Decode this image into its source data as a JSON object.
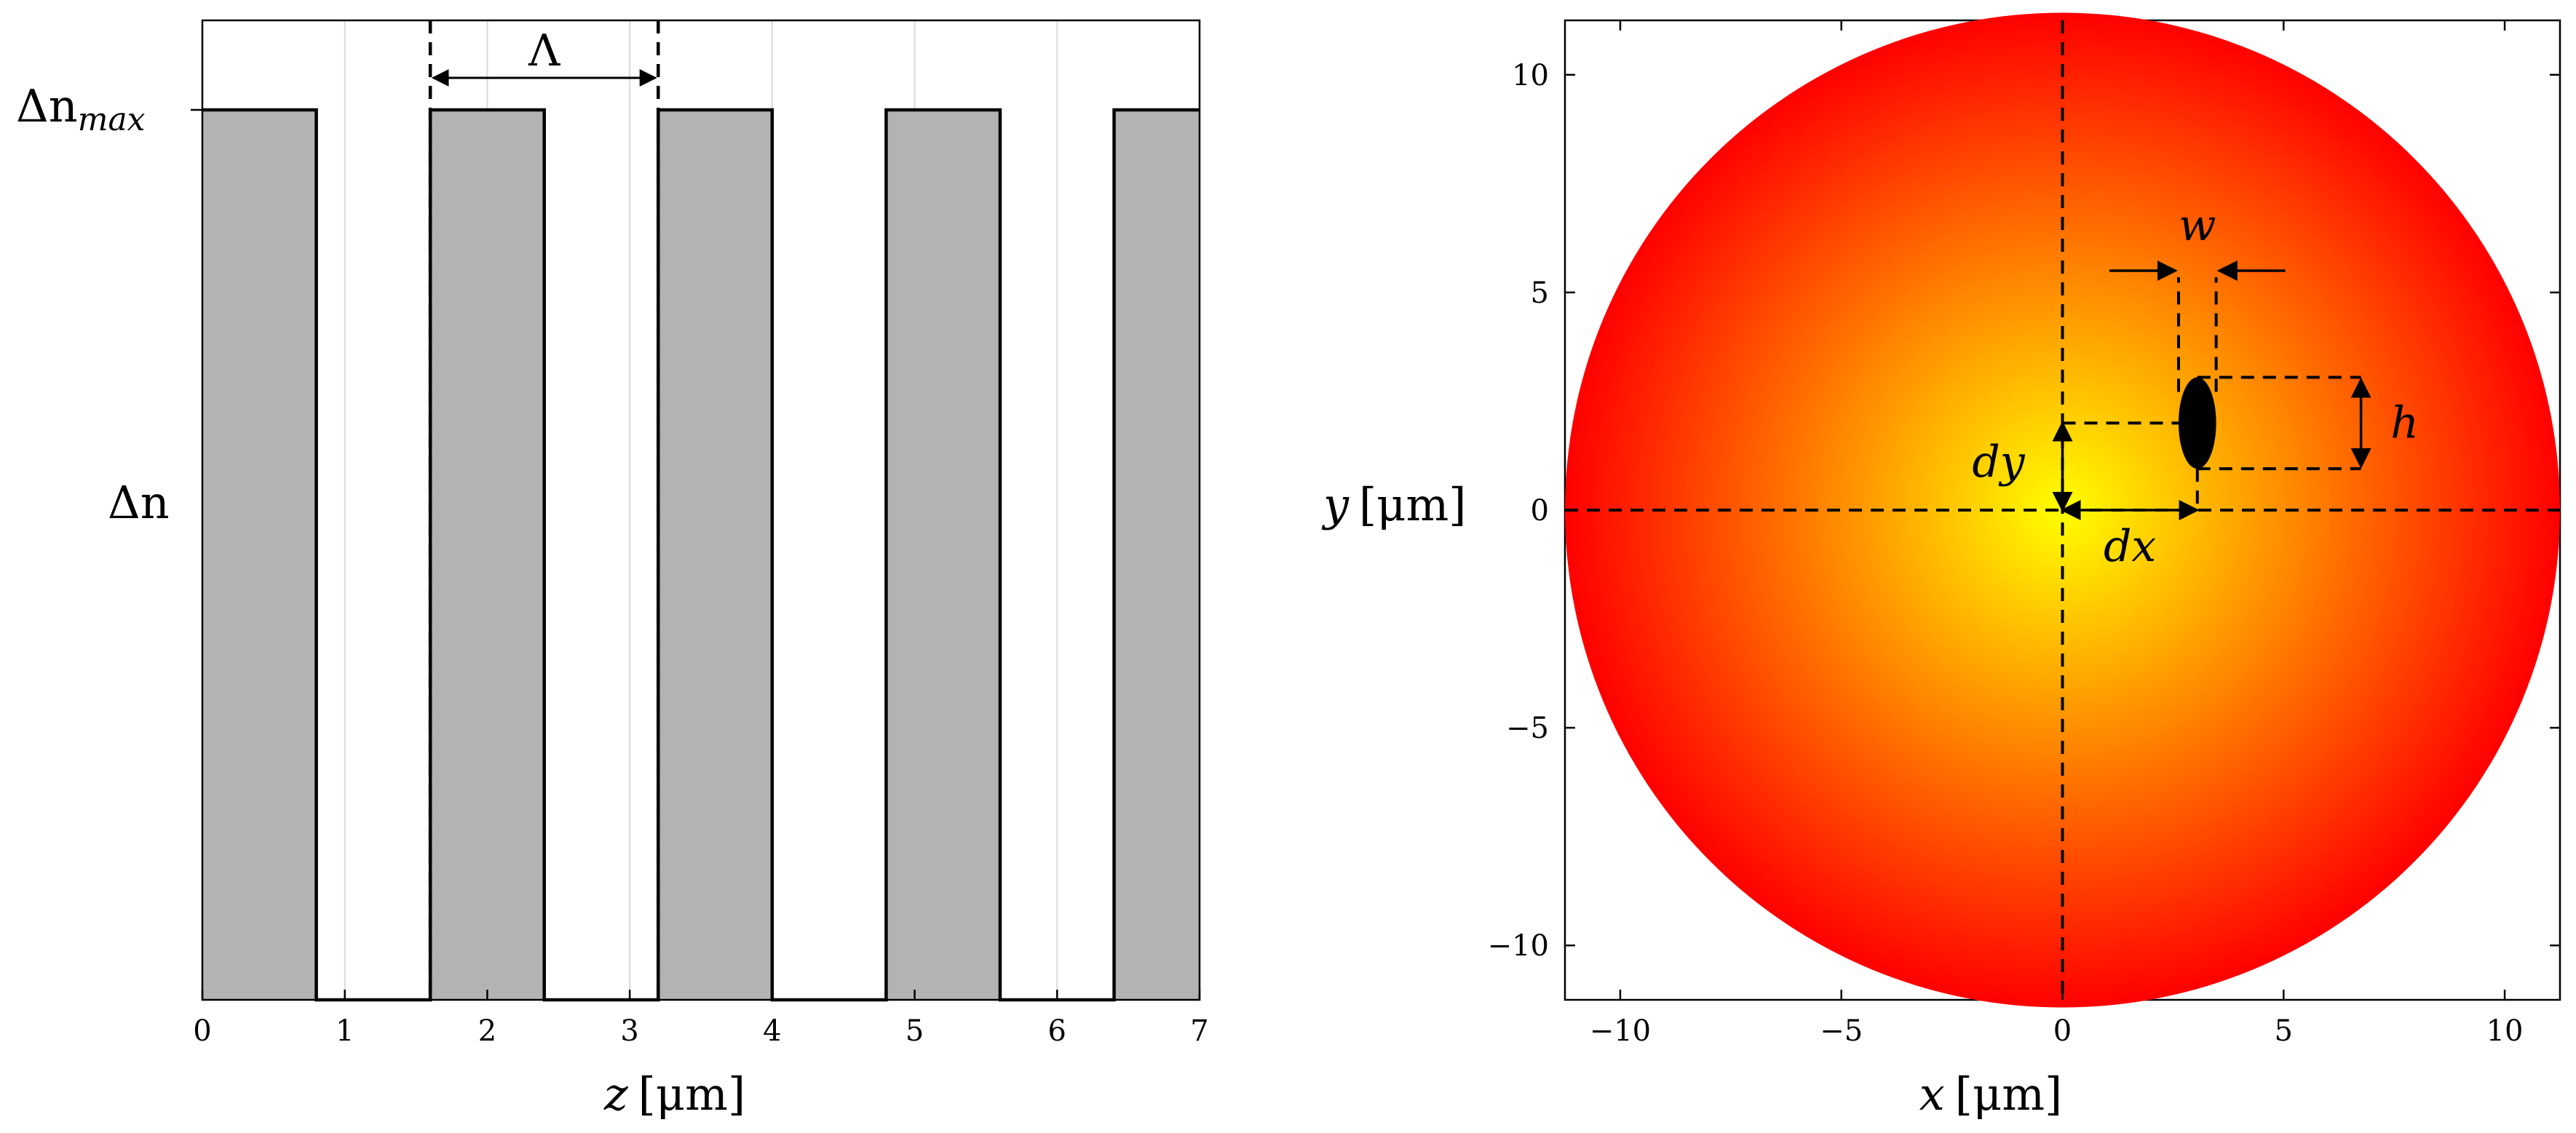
{
  "chart_data": [
    {
      "type": "area",
      "description_panel": "left",
      "x": [
        0,
        0.8,
        0.8,
        1.6,
        1.6,
        2.4,
        2.4,
        3.2,
        3.2,
        4.0,
        4.0,
        4.8,
        4.8,
        5.6,
        5.6,
        6.4,
        6.4,
        7.0
      ],
      "y": [
        1,
        1,
        0,
        0,
        1,
        1,
        0,
        0,
        1,
        1,
        0,
        0,
        1,
        1,
        0,
        0,
        1,
        1
      ],
      "xlim": [
        0,
        7
      ],
      "xticks": [
        "0",
        "1",
        "2",
        "3",
        "4",
        "5",
        "6",
        "7"
      ],
      "xlabel_var": "z",
      "xlabel_unit": "[μm]",
      "ylabel": "Δn",
      "ytick_max_main": "Δn",
      "ytick_max_sub": "max",
      "period_label": "Λ",
      "period_range": [
        1.6,
        3.2
      ],
      "grid": true,
      "fill_color": "#b3b3b3"
    },
    {
      "type": "heatmap",
      "description_panel": "right",
      "circle_radius": 11.25,
      "xlim": [
        -11.25,
        11.25
      ],
      "ylim": [
        -11.25,
        11.25
      ],
      "xticks": [
        "−10",
        "−5",
        "0",
        "5",
        "10"
      ],
      "yticks": [
        "10",
        "5",
        "0",
        "−5",
        "−10"
      ],
      "tick_values": [
        -10,
        -5,
        0,
        5,
        10
      ],
      "xlabel_var": "x",
      "xlabel_unit": "[μm]",
      "ylabel_var": "y",
      "ylabel_unit": "[μm]",
      "center_color": "#ffff00",
      "edge_color": "#ff0000",
      "ellipse": {
        "cx": 3.05,
        "cy": 2.0,
        "w": 0.85,
        "h": 2.1
      },
      "labels": {
        "w": "w",
        "h": "h",
        "dx": "dx",
        "dy": "dy"
      }
    }
  ]
}
